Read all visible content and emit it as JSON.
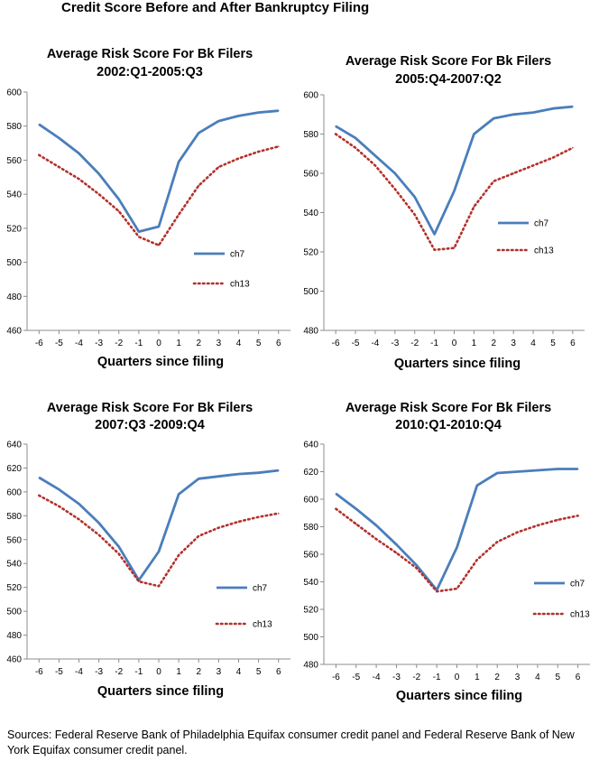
{
  "header": {
    "title": "Credit Score Before and After Bankruptcy Filing"
  },
  "footer": {
    "source": "Sources: Federal Reserve Bank of Philadelphia Equifax consumer credit panel and Federal Reserve Bank of New York Equifax consumer credit panel."
  },
  "colors": {
    "ch7": "#4a7ebb",
    "ch13": "#b2312c",
    "axis": "#8c8c8c"
  },
  "chart_data": [
    {
      "type": "line",
      "title": "Average Risk Score For Bk Filers",
      "subtitle": "2002:Q1-2005:Q3",
      "xlabel": "Quarters since filing",
      "ylabel": "",
      "x": [
        -6,
        -5,
        -4,
        -3,
        -2,
        -1,
        0,
        1,
        2,
        3,
        4,
        5,
        6
      ],
      "ylim": [
        460,
        600
      ],
      "yticks": [
        460,
        480,
        500,
        520,
        540,
        560,
        580,
        600
      ],
      "series": [
        {
          "name": "ch7",
          "values": [
            581,
            573,
            564,
            552,
            537,
            518,
            521,
            559,
            576,
            583,
            586,
            588,
            589
          ]
        },
        {
          "name": "ch13",
          "values": [
            563,
            556,
            549,
            540,
            530,
            515,
            510,
            528,
            545,
            556,
            561,
            565,
            568
          ]
        }
      ],
      "grid": false,
      "legend": "right"
    },
    {
      "type": "line",
      "title": "Average Risk Score For Bk Filers",
      "subtitle": "2005:Q4-2007:Q2",
      "xlabel": "Quarters since filing",
      "ylabel": "",
      "x": [
        -6,
        -5,
        -4,
        -3,
        -2,
        -1,
        0,
        1,
        2,
        3,
        4,
        5,
        6
      ],
      "ylim": [
        480,
        600
      ],
      "yticks": [
        480,
        500,
        520,
        540,
        560,
        580,
        600
      ],
      "series": [
        {
          "name": "ch7",
          "values": [
            584,
            578,
            569,
            560,
            548,
            529,
            551,
            580,
            588,
            590,
            591,
            593,
            594
          ]
        },
        {
          "name": "ch13",
          "values": [
            580,
            573,
            564,
            552,
            539,
            521,
            522,
            543,
            556,
            560,
            564,
            568,
            573
          ]
        }
      ],
      "grid": false,
      "legend": "right"
    },
    {
      "type": "line",
      "title": "Average Risk Score For Bk Filers",
      "subtitle": "2007:Q3 -2009:Q4",
      "xlabel": "Quarters since filing",
      "ylabel": "",
      "x": [
        -6,
        -5,
        -4,
        -3,
        -2,
        -1,
        0,
        1,
        2,
        3,
        4,
        5,
        6
      ],
      "ylim": [
        460,
        640
      ],
      "yticks": [
        460,
        480,
        500,
        520,
        540,
        560,
        580,
        600,
        620,
        640
      ],
      "series": [
        {
          "name": "ch7",
          "values": [
            612,
            602,
            590,
            574,
            554,
            526,
            550,
            598,
            611,
            613,
            615,
            616,
            618
          ]
        },
        {
          "name": "ch13",
          "values": [
            597,
            588,
            577,
            564,
            548,
            525,
            521,
            547,
            563,
            570,
            575,
            579,
            582
          ]
        }
      ],
      "grid": false,
      "legend": "right"
    },
    {
      "type": "line",
      "title": "Average Risk Score For Bk Filers",
      "subtitle": "2010:Q1-2010:Q4",
      "xlabel": "Quarters since filing",
      "ylabel": "",
      "x": [
        -6,
        -5,
        -4,
        -3,
        -2,
        -1,
        0,
        1,
        2,
        3,
        4,
        5,
        6
      ],
      "ylim": [
        480,
        640
      ],
      "yticks": [
        480,
        500,
        520,
        540,
        560,
        580,
        600,
        620,
        640
      ],
      "series": [
        {
          "name": "ch7",
          "values": [
            604,
            593,
            581,
            567,
            552,
            534,
            565,
            610,
            619,
            620,
            621,
            622,
            622
          ]
        },
        {
          "name": "ch13",
          "values": [
            593,
            582,
            571,
            561,
            550,
            533,
            535,
            556,
            569,
            576,
            581,
            585,
            588
          ]
        }
      ],
      "grid": false,
      "legend": "right"
    }
  ]
}
